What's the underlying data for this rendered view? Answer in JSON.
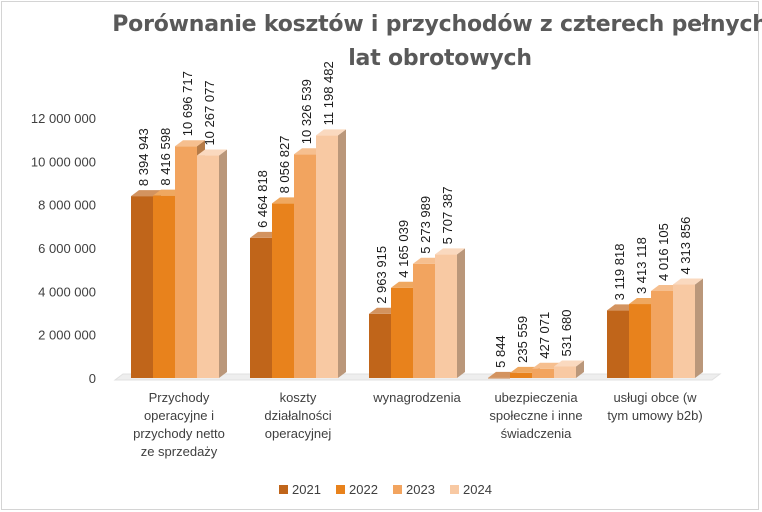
{
  "chart_data": {
    "type": "bar",
    "title": "Porównanie kosztów i przychodów z czterech pełnych lat obrotowych",
    "title_lines": [
      "Porównanie kosztów i przychodów z czterech pełnych",
      "lat obrotowych"
    ],
    "categories": [
      "Przychody operacyjne i przychody netto ze sprzedaży",
      "koszty działalności operacyjnej",
      "wynagrodzenia",
      "ubezpieczenia społeczne i inne świadczenia",
      "usługi obce (w tym umowy b2b)"
    ],
    "category_lines": [
      [
        "Przychody",
        "operacyjne i",
        "przychody netto",
        "ze sprzedaży"
      ],
      [
        "koszty",
        "działalności",
        "operacyjnej"
      ],
      [
        "wynagrodzenia"
      ],
      [
        "ubezpieczenia",
        "społeczne i inne",
        "świadczenia"
      ],
      [
        "usługi obce (w",
        "tym umowy b2b)"
      ]
    ],
    "series": [
      {
        "name": "2021",
        "color": "#c0651a",
        "values": [
          8394943,
          6464818,
          2963915,
          5844,
          3119818
        ]
      },
      {
        "name": "2022",
        "color": "#e8821c",
        "values": [
          8416598,
          8056827,
          4165039,
          235559,
          3413118
        ]
      },
      {
        "name": "2023",
        "color": "#f2a45f",
        "values": [
          10696717,
          10326539,
          5273989,
          427071,
          4016105
        ]
      },
      {
        "name": "2024",
        "color": "#f8c9a3",
        "values": [
          10267077,
          11198482,
          5707387,
          531680,
          4313856
        ]
      }
    ],
    "data_labels": [
      [
        "8 394 943",
        "8 416 598",
        "10 696 717",
        "10 267 077"
      ],
      [
        "6 464 818",
        "8 056 827",
        "10 326 539",
        "11 198 482"
      ],
      [
        "2 963 915",
        "4 165 039",
        "5 273 989",
        "5 707 387"
      ],
      [
        "5 844",
        "235 559",
        "427 071",
        "531 680"
      ],
      [
        "3 119 818",
        "3 413 118",
        "4 016 105",
        "4 313 856"
      ]
    ],
    "y_ticks": [
      "0",
      "2 000 000",
      "4 000 000",
      "6 000 000",
      "8 000 000",
      "10 000 000",
      "12 000 000"
    ],
    "ylim": [
      0,
      12000000
    ],
    "grid": false,
    "legend_position": "bottom",
    "style": "3d-bar"
  }
}
